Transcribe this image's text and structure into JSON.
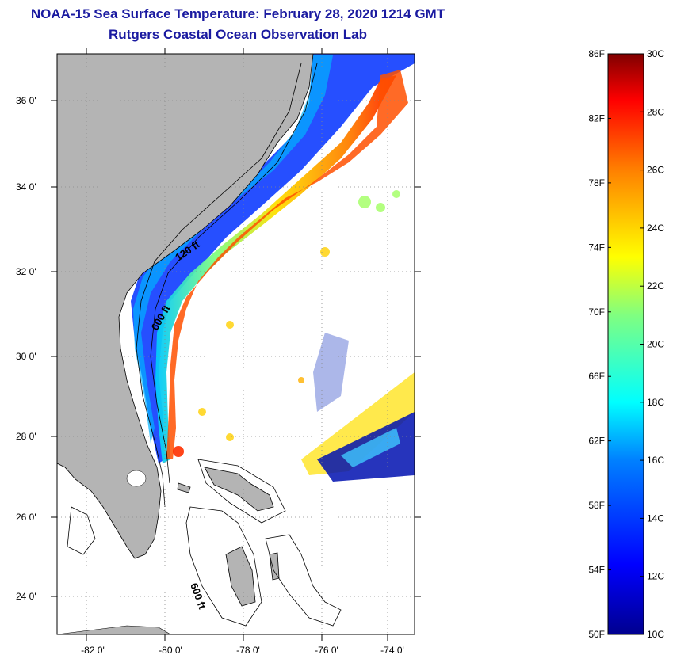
{
  "header": {
    "title": "NOAA-15 Sea Surface Temperature:  February 28, 2020 1214 GMT",
    "subtitle": "Rutgers Coastal Ocean Observation Lab"
  },
  "map": {
    "lon_ticks": [
      "-82 0'",
      "-80 0'",
      "-78 0'",
      "-76 0'",
      "-74 0'"
    ],
    "lat_ticks": [
      "36 0'",
      "34 0'",
      "32 0'",
      "30 0'",
      "28 0'",
      "26 0'",
      "24 0'"
    ],
    "contour_labels": [
      "120 ft",
      "600 ft",
      "600 ft"
    ],
    "colors": {
      "land": "#b4b4b4",
      "frame": "#000000"
    }
  },
  "colorbar": {
    "f_labels": [
      "86F",
      "82F",
      "78F",
      "74F",
      "70F",
      "66F",
      "62F",
      "58F",
      "54F",
      "50F"
    ],
    "c_labels": [
      "30C",
      "28C",
      "26C",
      "24C",
      "22C",
      "20C",
      "18C",
      "16C",
      "14C",
      "12C",
      "10C"
    ],
    "colormap": [
      "#00008f",
      "#0000ff",
      "#0080ff",
      "#00ffff",
      "#80ff80",
      "#ffff00",
      "#ff8000",
      "#ff0000",
      "#800000"
    ]
  }
}
